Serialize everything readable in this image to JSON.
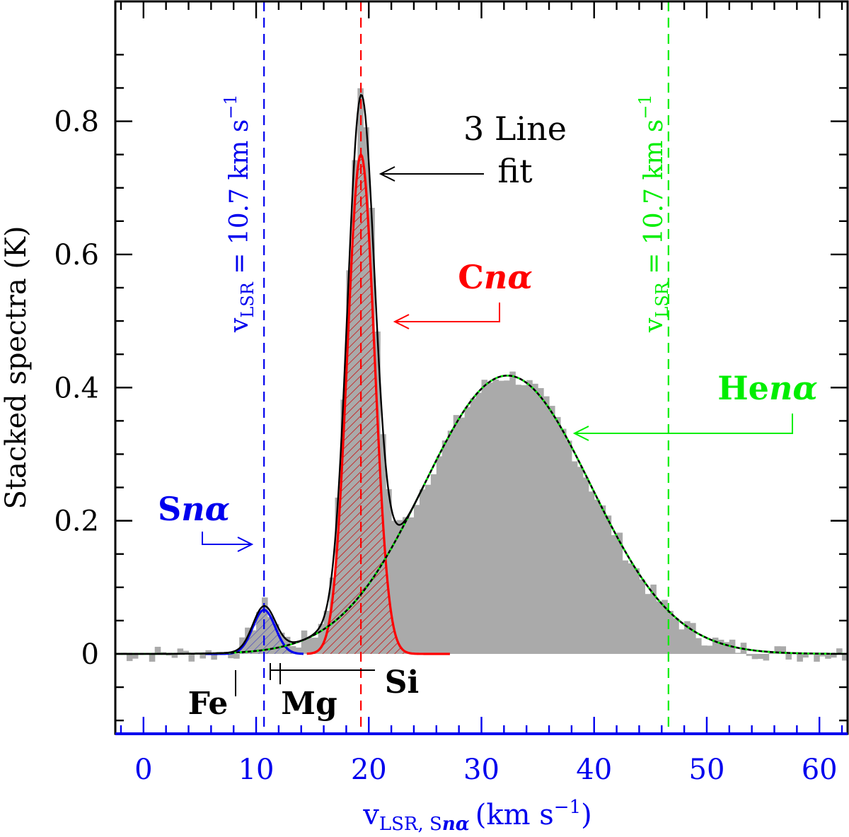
{
  "chart_data": {
    "type": "histogram",
    "ylabel": "Stacked spectra (K)",
    "xlabel_main": "v",
    "xlabel_sub": "LSR, S",
    "xlabel_sub_italic": "nα",
    "xlabel_units": "(km s",
    "xlabel_units_exp": "−1",
    "xlabel_units_close": ")",
    "xlim": [
      -2.5,
      62.5
    ],
    "ylim": [
      -0.12,
      0.98
    ],
    "xticks": [
      0,
      10,
      20,
      30,
      40,
      50,
      60
    ],
    "xtick_labels": [
      "0",
      "10",
      "20",
      "30",
      "40",
      "50",
      "60"
    ],
    "yticks": [
      0,
      0.2,
      0.4,
      0.6,
      0.8
    ],
    "ytick_labels": [
      "0",
      "0.2",
      "0.4",
      "0.6",
      "0.8"
    ],
    "stacked_spectrum": {
      "color": "#aaaaaa",
      "channel_width": 0.5,
      "components": [
        {
          "amp": 0.066,
          "center": 10.7,
          "sigma": 1.0
        },
        {
          "amp": 0.75,
          "center": 19.3,
          "sigma": 1.2
        },
        {
          "amp": 0.418,
          "center": 32.3,
          "sigma": 7.4
        }
      ]
    },
    "fits": [
      {
        "name": "Sn-alpha",
        "amp": 0.066,
        "center": 10.7,
        "sigma": 1.0,
        "range": [
          5.5,
          14.2
        ],
        "color": "#0000ee",
        "hatch": true
      },
      {
        "name": "Cn-alpha",
        "amp": 0.75,
        "center": 19.3,
        "sigma": 1.2,
        "range": [
          14.5,
          27.2
        ],
        "color": "#ff0000",
        "hatch": true
      },
      {
        "name": "Hen-alpha",
        "amp": 0.418,
        "center": 32.3,
        "sigma": 7.4,
        "range": [
          -2.5,
          62.5
        ],
        "color": "#00ee00",
        "dotted": true
      }
    ],
    "total_fit_color": "#000000",
    "vlines": [
      {
        "x": 10.7,
        "color": "#0000ee"
      },
      {
        "x": 19.3,
        "color": "#ff0000"
      },
      {
        "x": 46.6,
        "color": "#00ee00"
      }
    ],
    "element_markers": [
      {
        "label": "Fe",
        "x": 8.6
      },
      {
        "label": "Mg",
        "x": 12.3
      },
      {
        "label": "Si",
        "x": 19.4
      }
    ],
    "annotations": {
      "fit_line1": "3 Line",
      "fit_line2": "fit",
      "carbon": "C",
      "carbon_n": "nα",
      "sulfur": "S",
      "sulfur_n": "nα",
      "helium": "He",
      "helium_n": "nα",
      "vlsr_left": "v",
      "vlsr_left_sub": "LSR",
      "vlsr_left_val": " = 10.7 km s",
      "vlsr_left_exp": "−1",
      "vlsr_right": "v",
      "vlsr_right_sub": "LSR",
      "vlsr_right_val": " = 10.7 km s",
      "vlsr_right_exp": "−1"
    },
    "colors": {
      "axis_bottom": "#0000ee",
      "hydrogen_like": "#00ee00"
    }
  }
}
